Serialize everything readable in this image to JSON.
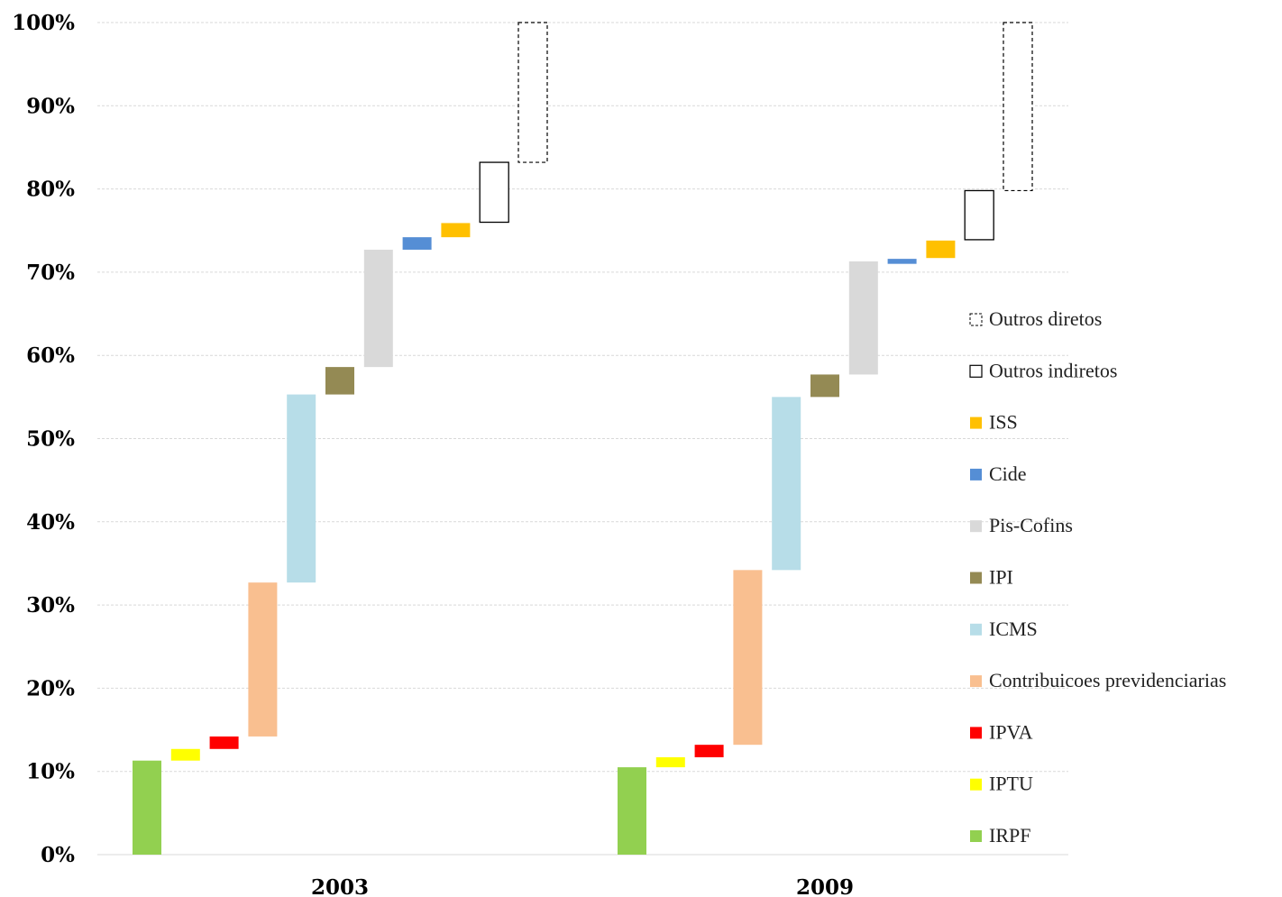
{
  "chart_data": {
    "type": "bar",
    "subtype": "waterfall",
    "title": "",
    "xlabel": "",
    "ylabel": "",
    "ylim": [
      0,
      100
    ],
    "y_ticks": [
      "0%",
      "10%",
      "20%",
      "30%",
      "40%",
      "50%",
      "60%",
      "70%",
      "80%",
      "90%",
      "100%"
    ],
    "grid": true,
    "legend_position": "right",
    "categories": [
      "2003",
      "2009"
    ],
    "series": [
      {
        "name": "IRPF",
        "color": "#92d050",
        "style": "filled",
        "ranges": [
          [
            0,
            11.3
          ],
          [
            0,
            10.5
          ]
        ]
      },
      {
        "name": "IPTU",
        "color": "#ffff00",
        "style": "filled",
        "ranges": [
          [
            11.3,
            12.7
          ],
          [
            10.5,
            11.7
          ]
        ]
      },
      {
        "name": "IPVA",
        "color": "#ff0000",
        "style": "filled",
        "ranges": [
          [
            12.7,
            14.2
          ],
          [
            11.7,
            13.2
          ]
        ]
      },
      {
        "name": "Contribuicoes previdenciarias",
        "color": "#f9bf90",
        "style": "filled",
        "ranges": [
          [
            14.2,
            32.7
          ],
          [
            13.2,
            34.2
          ]
        ]
      },
      {
        "name": "ICMS",
        "color": "#b7dde8",
        "style": "filled",
        "ranges": [
          [
            32.7,
            55.3
          ],
          [
            34.2,
            55.0
          ]
        ]
      },
      {
        "name": "IPI",
        "color": "#948a54",
        "style": "filled",
        "ranges": [
          [
            55.3,
            58.6
          ],
          [
            55.0,
            57.7
          ]
        ]
      },
      {
        "name": "Pis-Cofins",
        "color": "#d9d9d9",
        "style": "filled",
        "ranges": [
          [
            58.6,
            72.7
          ],
          [
            57.7,
            71.3
          ]
        ]
      },
      {
        "name": "Cide",
        "color": "#558ed5",
        "style": "filled",
        "ranges": [
          [
            72.7,
            74.2
          ],
          [
            71.0,
            71.6
          ]
        ]
      },
      {
        "name": "ISS",
        "color": "#ffc000",
        "style": "filled",
        "ranges": [
          [
            74.2,
            75.9
          ],
          [
            71.7,
            73.8
          ]
        ]
      },
      {
        "name": "Outros indiretos",
        "color": "#000000",
        "style": "outline",
        "ranges": [
          [
            76.0,
            83.2
          ],
          [
            73.9,
            79.8
          ]
        ]
      },
      {
        "name": "Outros diretos",
        "color": "#000000",
        "style": "dashed",
        "ranges": [
          [
            83.2,
            100
          ],
          [
            79.8,
            100
          ]
        ]
      }
    ]
  }
}
